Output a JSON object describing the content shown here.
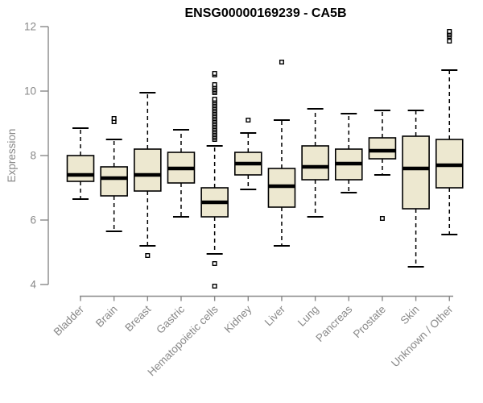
{
  "chart_data": {
    "type": "boxplot",
    "title": "ENSG00000169239 - CA5B",
    "xlabel": "",
    "ylabel": "Expression",
    "ylim": [
      4,
      12
    ],
    "yticks": [
      4,
      6,
      8,
      10,
      12
    ],
    "grid": false,
    "legend": "none",
    "colors": {
      "box_fill": "#EDE8D0",
      "box_stroke": "#000000",
      "axis": "#888888",
      "title": "#000000",
      "background": "#ffffff"
    },
    "categories": [
      "Bladder",
      "Brain",
      "Breast",
      "Gastric",
      "Hematopoietic cells",
      "Kidney",
      "Liver",
      "Lung",
      "Pancreas",
      "Prostate",
      "Skin",
      "Unknown / Other"
    ],
    "boxes": [
      {
        "name": "Bladder",
        "whisker_low": 6.65,
        "q1": 7.2,
        "median": 7.4,
        "q3": 8.0,
        "whisker_high": 8.85,
        "outliers": []
      },
      {
        "name": "Brain",
        "whisker_low": 5.65,
        "q1": 6.75,
        "median": 7.3,
        "q3": 7.65,
        "whisker_high": 8.5,
        "outliers": [
          9.05,
          9.15
        ]
      },
      {
        "name": "Breast",
        "whisker_low": 5.2,
        "q1": 6.9,
        "median": 7.4,
        "q3": 8.2,
        "whisker_high": 9.95,
        "outliers": [
          4.9
        ]
      },
      {
        "name": "Gastric",
        "whisker_low": 6.1,
        "q1": 7.15,
        "median": 7.6,
        "q3": 8.1,
        "whisker_high": 8.8,
        "outliers": []
      },
      {
        "name": "Hematopoietic cells",
        "whisker_low": 4.95,
        "q1": 6.1,
        "median": 6.55,
        "q3": 7.0,
        "whisker_high": 8.3,
        "outliers": [
          3.95,
          4.65,
          8.5,
          8.55,
          8.6,
          8.65,
          8.7,
          8.75,
          8.8,
          8.85,
          8.9,
          8.95,
          9.0,
          9.05,
          9.1,
          9.15,
          9.2,
          9.25,
          9.3,
          9.35,
          9.4,
          9.45,
          9.5,
          9.55,
          9.6,
          9.65,
          9.7,
          9.75,
          9.95,
          10.0,
          10.05,
          10.1,
          10.15,
          10.2,
          10.5,
          10.55
        ]
      },
      {
        "name": "Kidney",
        "whisker_low": 6.95,
        "q1": 7.4,
        "median": 7.75,
        "q3": 8.1,
        "whisker_high": 8.7,
        "outliers": [
          9.1
        ]
      },
      {
        "name": "Liver",
        "whisker_low": 5.2,
        "q1": 6.4,
        "median": 7.05,
        "q3": 7.6,
        "whisker_high": 9.1,
        "outliers": [
          10.9
        ]
      },
      {
        "name": "Lung",
        "whisker_low": 6.1,
        "q1": 7.25,
        "median": 7.65,
        "q3": 8.3,
        "whisker_high": 9.45,
        "outliers": []
      },
      {
        "name": "Pancreas",
        "whisker_low": 6.85,
        "q1": 7.25,
        "median": 7.75,
        "q3": 8.2,
        "whisker_high": 9.3,
        "outliers": []
      },
      {
        "name": "Prostate",
        "whisker_low": 7.4,
        "q1": 7.9,
        "median": 8.15,
        "q3": 8.55,
        "whisker_high": 9.4,
        "outliers": [
          6.05
        ]
      },
      {
        "name": "Skin",
        "whisker_low": 4.55,
        "q1": 6.35,
        "median": 7.6,
        "q3": 8.6,
        "whisker_high": 9.4,
        "outliers": []
      },
      {
        "name": "Unknown / Other",
        "whisker_low": 5.55,
        "q1": 7.0,
        "median": 7.7,
        "q3": 8.5,
        "whisker_high": 10.65,
        "outliers": [
          11.55,
          11.7,
          11.75,
          11.8,
          11.85
        ]
      }
    ]
  }
}
